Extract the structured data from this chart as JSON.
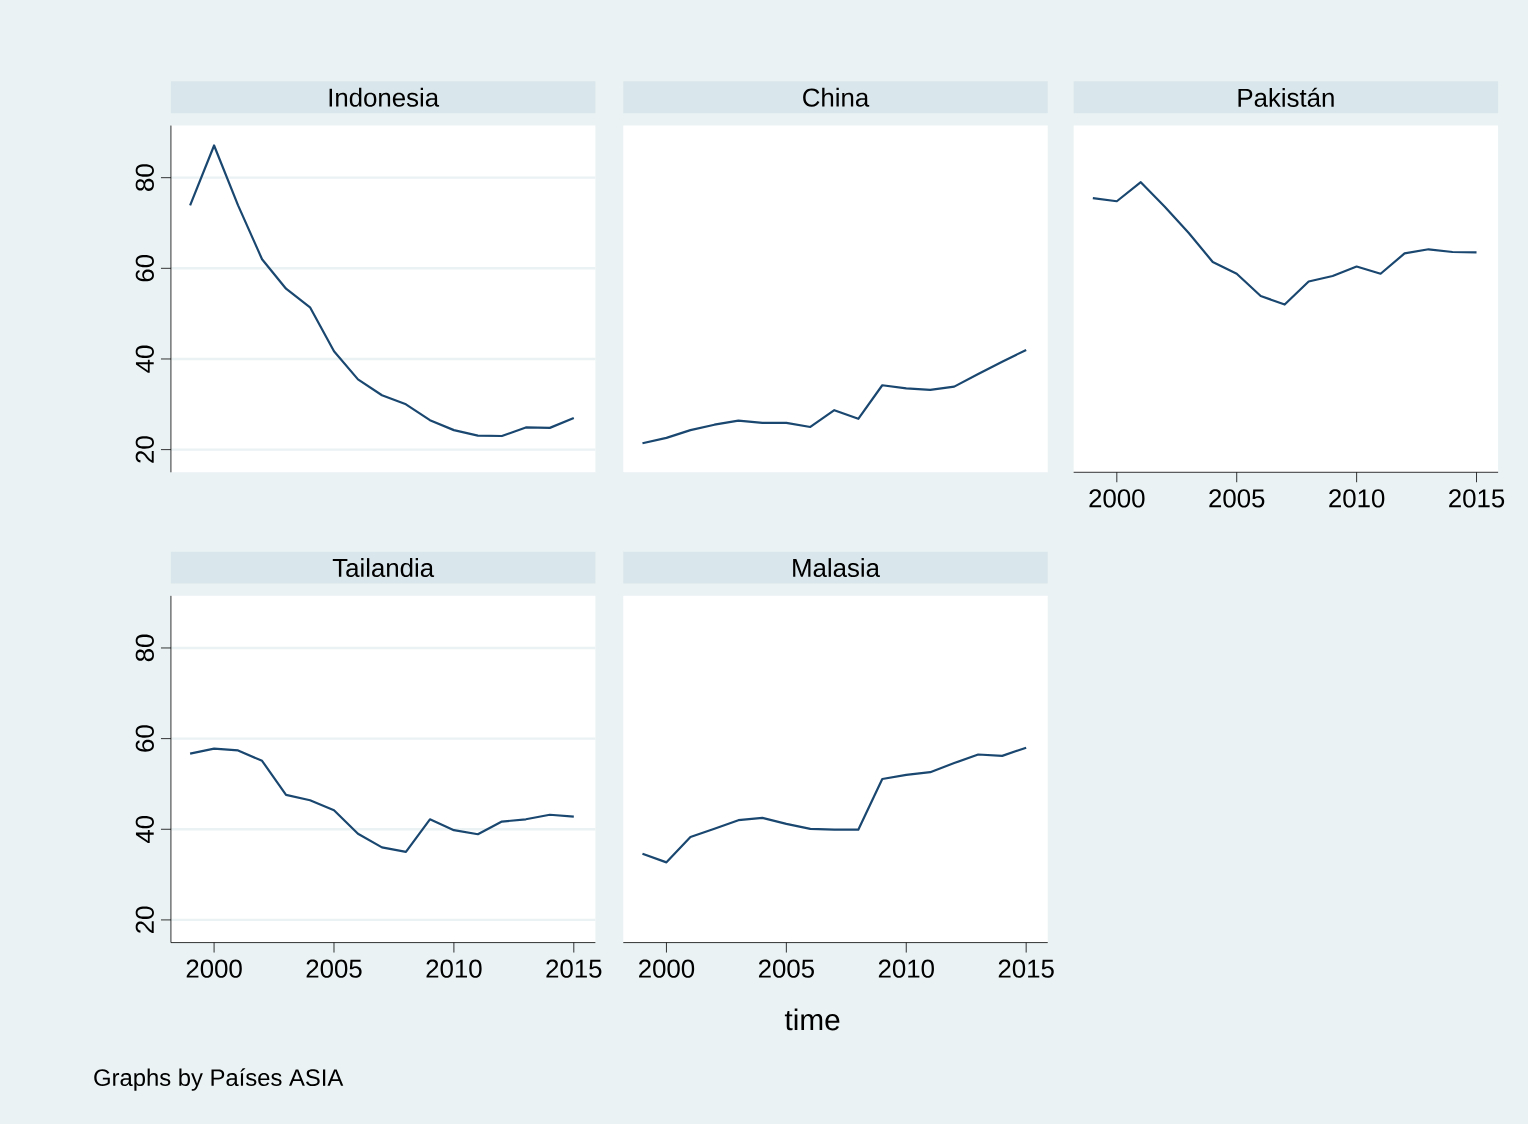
{
  "chart_data": [
    {
      "type": "line",
      "title": "Indonesia",
      "x": [
        1999,
        2000,
        2001,
        2002,
        2003,
        2004,
        2005,
        2006,
        2007,
        2008,
        2009,
        2010,
        2011,
        2012,
        2013,
        2014,
        2015
      ],
      "values": [
        73.9,
        87.1,
        73.9,
        62.0,
        55.5,
        51.4,
        41.7,
        35.5,
        32.0,
        30.0,
        26.5,
        24.3,
        23.1,
        23.0,
        24.9,
        24.8,
        27.0
      ],
      "color": "#1a476f",
      "xlim": [
        1998.2,
        2015.9
      ],
      "ylim": [
        15,
        91.5
      ],
      "xticks": [
        2000,
        2005,
        2010,
        2015
      ],
      "yticks": [
        20,
        40,
        60,
        80
      ],
      "grid": "y",
      "tick_labels": "y"
    },
    {
      "type": "line",
      "title": "China",
      "x": [
        1999,
        2000,
        2001,
        2002,
        2003,
        2004,
        2005,
        2006,
        2007,
        2008,
        2009,
        2010,
        2011,
        2012,
        2013,
        2014,
        2015
      ],
      "values": [
        21.4,
        22.6,
        24.3,
        25.5,
        26.4,
        25.9,
        25.9,
        25.0,
        28.7,
        26.8,
        34.2,
        33.5,
        33.2,
        33.9,
        36.7,
        39.4,
        42.0
      ],
      "color": "#1a476f",
      "xlim": [
        1998.2,
        2015.9
      ],
      "ylim": [
        15,
        91.5
      ],
      "xticks": [
        2000,
        2005,
        2010,
        2015
      ],
      "yticks": [
        20,
        40,
        60,
        80
      ],
      "grid": "y",
      "tick_labels": false
    },
    {
      "type": "line",
      "title": "Pakistán",
      "x": [
        1999,
        2000,
        2001,
        2002,
        2003,
        2004,
        2005,
        2006,
        2007,
        2008,
        2009,
        2010,
        2011,
        2012,
        2013,
        2014,
        2015
      ],
      "values": [
        75.5,
        74.8,
        79.0,
        73.6,
        67.8,
        61.4,
        58.8,
        53.9,
        52.0,
        57.1,
        58.3,
        60.4,
        58.8,
        63.3,
        64.2,
        63.6,
        63.5
      ],
      "color": "#1a476f",
      "xlim": [
        1998.2,
        2015.9
      ],
      "ylim": [
        15,
        91.5
      ],
      "xticks": [
        2000,
        2005,
        2010,
        2015
      ],
      "yticks": [
        20,
        40,
        60,
        80
      ],
      "grid": "y",
      "tick_labels": "x"
    },
    {
      "type": "line",
      "title": "Tailandia",
      "annotations": [
        "Graphs by Países ASIA"
      ],
      "x": [
        1999,
        2000,
        2001,
        2002,
        2003,
        2004,
        2005,
        2006,
        2007,
        2008,
        2009,
        2010,
        2011,
        2012,
        2013,
        2014,
        2015
      ],
      "values": [
        56.7,
        57.8,
        57.4,
        55.1,
        47.6,
        46.4,
        44.2,
        39.0,
        36.0,
        35.0,
        42.2,
        39.8,
        38.9,
        41.7,
        42.2,
        43.2,
        42.8
      ],
      "color": "#1a476f",
      "xlim": [
        1998.2,
        2015.9
      ],
      "ylim": [
        15,
        91.5
      ],
      "xticks": [
        2000,
        2005,
        2010,
        2015
      ],
      "yticks": [
        20,
        40,
        60,
        80
      ],
      "grid": "y"
    },
    {
      "type": "line",
      "title": "Malasia",
      "xlabel": "time",
      "x": [
        1999,
        2000,
        2001,
        2002,
        2003,
        2004,
        2005,
        2006,
        2007,
        2008,
        2009,
        2010,
        2011,
        2012,
        2013,
        2014,
        2015
      ],
      "values": [
        34.6,
        32.7,
        38.3,
        40.1,
        42.0,
        42.5,
        41.2,
        40.1,
        39.9,
        39.9,
        51.1,
        52.0,
        52.6,
        54.6,
        56.5,
        56.2,
        58.0
      ],
      "color": "#1a476f",
      "xlim": [
        1998.2,
        2015.9
      ],
      "ylim": [
        15,
        91.5
      ],
      "xticks": [
        2000,
        2005,
        2010,
        2015
      ],
      "yticks": [
        20,
        40,
        60,
        80
      ],
      "grid": "y",
      "tick_labels": "x"
    }
  ]
}
